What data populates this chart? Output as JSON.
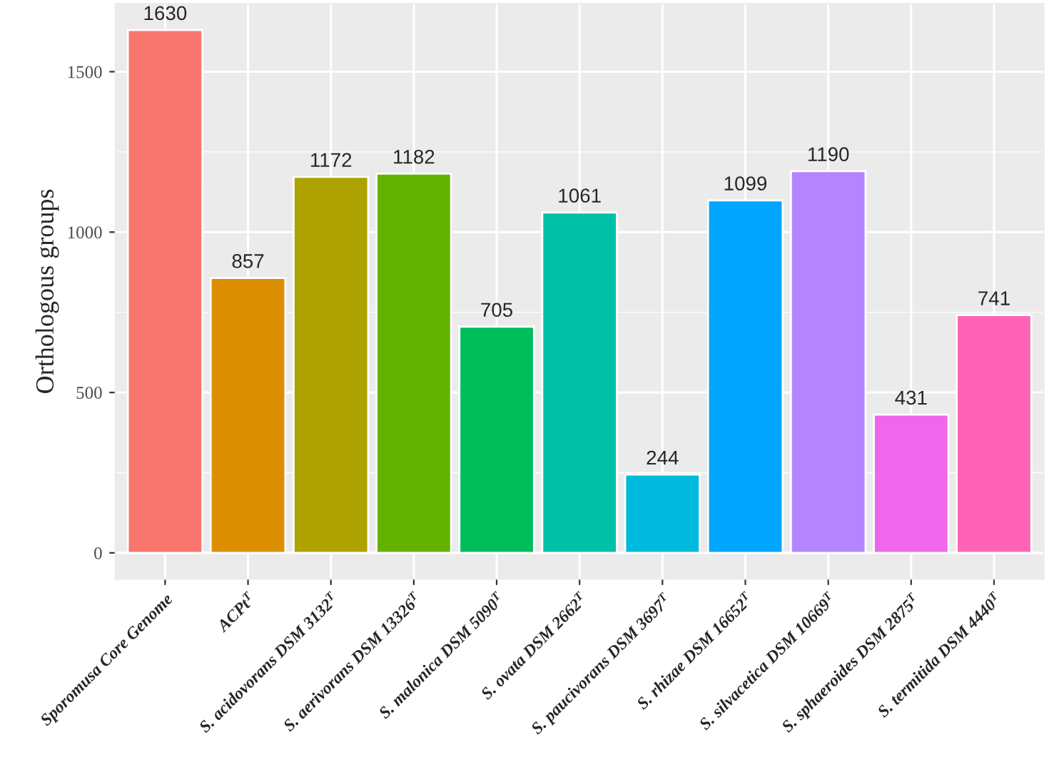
{
  "chart_data": {
    "type": "bar",
    "ylabel": "Orthologous groups",
    "categories": [
      "Sporomusa Core Genome",
      "ACPt$^{T}$",
      "S. acidovorans DSM 3132$^{T}$",
      "S. aerivorans DSM 13326$^{T}$",
      "S. malonica DSM 5090$^{T}$",
      "S. ovata DSM 2662$^{T}$",
      "S. paucivorans DSM 3697$^{T}$",
      "S. rhizae DSM 16652$^{T}$",
      "S. silvacetica DSM 10669$^{T}$",
      "S. sphaeroides DSM 2875$^{T}$",
      "S. termitida DSM 4440$^{T}$"
    ],
    "values": [
      1630,
      857,
      1172,
      1182,
      705,
      1061,
      244,
      1099,
      1190,
      431,
      741
    ],
    "colors": [
      "#f8766d",
      "#db8e00",
      "#aea200",
      "#64b200",
      "#00bd5c",
      "#00c1a7",
      "#00bade",
      "#00a6ff",
      "#b385ff",
      "#ef67eb",
      "#ff63b6"
    ],
    "ylim": [
      -81.5,
      1711.5
    ],
    "yticks": [
      0,
      500,
      1000,
      1500
    ],
    "grid": true,
    "data_labels": true,
    "legend": false
  }
}
